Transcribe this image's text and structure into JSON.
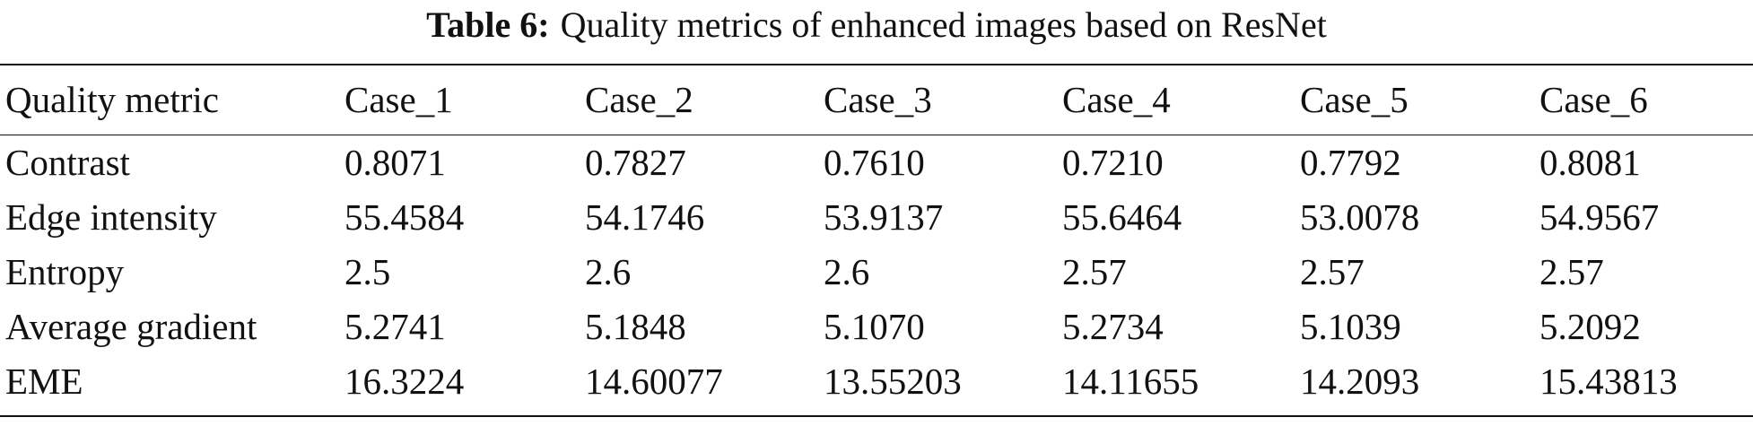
{
  "caption": {
    "label": "Table 6:",
    "text": "Quality metrics of enhanced images based on ResNet"
  },
  "table": {
    "header": [
      "Quality metric",
      "Case_1",
      "Case_2",
      "Case_3",
      "Case_4",
      "Case_5",
      "Case_6"
    ],
    "rows": [
      [
        "Contrast",
        "0.8071",
        "0.7827",
        "0.7610",
        "0.7210",
        "0.7792",
        "0.8081"
      ],
      [
        "Edge intensity",
        "55.4584",
        "54.1746",
        "53.9137",
        "55.6464",
        "53.0078",
        "54.9567"
      ],
      [
        "Entropy",
        "2.5",
        "2.6",
        "2.6",
        "2.57",
        "2.57",
        "2.57"
      ],
      [
        "Average gradient",
        "5.2741",
        "5.1848",
        "5.1070",
        "5.2734",
        "5.1039",
        "5.2092"
      ],
      [
        "EME",
        "16.3224",
        "14.60077",
        "13.55203",
        "14.11655",
        "14.2093",
        "15.43813"
      ]
    ]
  }
}
